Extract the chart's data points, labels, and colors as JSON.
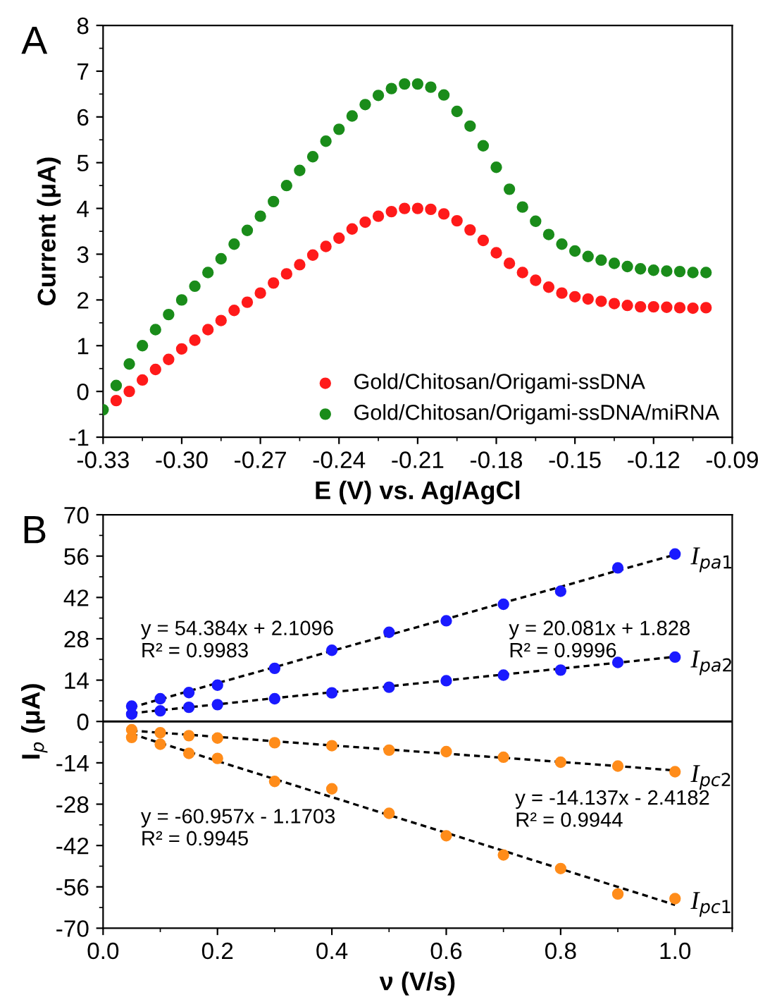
{
  "chart_data": [
    {
      "type": "scatter",
      "xlabel": "E (V) vs. Ag/AgCl",
      "ylabel": "Current (μA)",
      "annotations": [
        "A"
      ],
      "x": [
        -0.33,
        -0.325,
        -0.32,
        -0.315,
        -0.31,
        -0.305,
        -0.3,
        -0.295,
        -0.29,
        -0.285,
        -0.28,
        -0.275,
        -0.27,
        -0.265,
        -0.26,
        -0.255,
        -0.25,
        -0.245,
        -0.24,
        -0.235,
        -0.23,
        -0.225,
        -0.22,
        -0.215,
        -0.21,
        -0.205,
        -0.2,
        -0.195,
        -0.19,
        -0.185,
        -0.18,
        -0.175,
        -0.17,
        -0.165,
        -0.16,
        -0.155,
        -0.15,
        -0.145,
        -0.14,
        -0.135,
        -0.13,
        -0.125,
        -0.12,
        -0.115,
        -0.11,
        -0.105,
        -0.1
      ],
      "series": [
        {
          "name": "Gold/Chitosan/Origami-ssDNA",
          "color": "#ff1a1a",
          "values": [
            null,
            -0.2,
            0.0,
            0.25,
            0.48,
            0.7,
            0.93,
            1.12,
            1.35,
            1.55,
            1.77,
            1.95,
            2.15,
            2.37,
            2.57,
            2.77,
            2.98,
            3.17,
            3.35,
            3.55,
            3.7,
            3.83,
            3.93,
            4.0,
            4.0,
            3.98,
            3.88,
            3.73,
            3.53,
            3.3,
            3.03,
            2.8,
            2.6,
            2.43,
            2.28,
            2.15,
            2.07,
            2.02,
            1.97,
            1.92,
            1.88,
            1.85,
            1.85,
            1.84,
            1.83,
            1.82,
            1.83
          ]
        },
        {
          "name": "Gold/Chitosan/Origami-ssDNA/miRNA",
          "color": "#1a8c1a",
          "values": [
            -0.4,
            0.13,
            0.6,
            1.0,
            1.35,
            1.68,
            2.0,
            2.3,
            2.6,
            2.9,
            3.22,
            3.52,
            3.83,
            4.15,
            4.5,
            4.83,
            5.13,
            5.47,
            5.73,
            6.02,
            6.27,
            6.47,
            6.62,
            6.72,
            6.72,
            6.65,
            6.48,
            6.12,
            5.8,
            5.37,
            4.9,
            4.42,
            4.03,
            3.72,
            3.43,
            3.22,
            3.07,
            2.95,
            2.87,
            2.8,
            2.73,
            2.68,
            2.65,
            2.63,
            2.62,
            2.6,
            2.6
          ]
        }
      ],
      "xlim": [
        -0.33,
        -0.09
      ],
      "xticks": [
        {
          "value": -0.33,
          "label": "-0.33"
        },
        {
          "value": -0.3,
          "label": "-0.30"
        },
        {
          "value": -0.27,
          "label": "-0.27"
        },
        {
          "value": -0.24,
          "label": "-0.24"
        },
        {
          "value": -0.21,
          "label": "-0.21"
        },
        {
          "value": -0.18,
          "label": "-0.18"
        },
        {
          "value": -0.15,
          "label": "-0.15"
        },
        {
          "value": -0.12,
          "label": "-0.12"
        },
        {
          "value": -0.09,
          "label": "-0.09"
        }
      ],
      "ylim": [
        -1,
        8
      ],
      "yticks": [
        -1,
        0,
        1,
        2,
        3,
        4,
        5,
        6,
        7,
        8
      ],
      "marker": "circle",
      "legend": "bottom right"
    },
    {
      "type": "scatter",
      "xlabel": "ν (V/s)",
      "ylabel": "I$_{p}$ (μA)",
      "annotations": [
        "B",
        "y = 54.384x + 2.1096\nR² = 0.9983",
        "y = 20.081x + 1.828\nR² = 0.9996",
        "y = -14.137x - 2.4182\nR² = 0.9944",
        "y = -60.957x - 1.1703\nR² = 0.9945"
      ],
      "x": [
        0.05,
        0.1,
        0.15,
        0.2,
        0.3,
        0.4,
        0.5,
        0.6,
        0.7,
        0.8,
        0.9,
        1.0
      ],
      "series": [
        {
          "name": "I$_{pa1}$",
          "color": "#1a1aff",
          "values": [
            5.2,
            7.7,
            9.8,
            12.3,
            18.0,
            24.1,
            30.2,
            34.1,
            39.7,
            44.1,
            52.0,
            56.7
          ]
        },
        {
          "name": "I$_{pa2}$",
          "color": "#1a1aff",
          "values": [
            2.5,
            3.6,
            4.8,
            5.7,
            7.7,
            9.7,
            11.6,
            13.8,
            15.7,
            17.4,
            20.0,
            21.8
          ]
        },
        {
          "name": "I$_{pc2}$",
          "color": "#ff8c1a",
          "values": [
            -2.8,
            -3.8,
            -4.8,
            -5.6,
            -7.2,
            -8.2,
            -9.7,
            -10.2,
            -12.1,
            -13.8,
            -15.1,
            -17.0
          ]
        },
        {
          "name": "I$_{pc1}$",
          "color": "#ff8c1a",
          "values": [
            -5.4,
            -7.7,
            -10.8,
            -12.5,
            -20.3,
            -22.8,
            -31.1,
            -38.7,
            -45.2,
            -49.8,
            -58.4,
            -60.0
          ]
        },
        {
          "type": "line",
          "color": "#000000",
          "line_style": "dashed",
          "marker": "none",
          "values": [
            4.8,
            7.5,
            10.3,
            13.0,
            18.4,
            23.9,
            29.3,
            34.7,
            40.2,
            45.6,
            51.1,
            56.5
          ]
        },
        {
          "type": "line",
          "color": "#000000",
          "line_style": "dashed",
          "marker": "none",
          "values": [
            2.8,
            3.8,
            4.8,
            5.8,
            7.9,
            9.9,
            11.9,
            13.9,
            15.9,
            17.9,
            19.9,
            21.9
          ]
        },
        {
          "type": "line",
          "color": "#000000",
          "line_style": "dashed",
          "marker": "none",
          "values": [
            -3.1,
            -3.8,
            -4.5,
            -5.2,
            -6.7,
            -8.1,
            -9.5,
            -10.9,
            -12.3,
            -13.7,
            -15.1,
            -16.6
          ]
        },
        {
          "type": "line",
          "color": "#000000",
          "line_style": "dashed",
          "marker": "none",
          "values": [
            -4.2,
            -7.3,
            -10.3,
            -13.4,
            -19.5,
            -25.6,
            -31.7,
            -37.7,
            -43.8,
            -49.9,
            -56.0,
            -62.1
          ]
        }
      ],
      "xlim": [
        0,
        1.1
      ],
      "xticks": [
        {
          "value": 0,
          "label": "0.0"
        },
        {
          "value": 0.2,
          "label": "0.2"
        },
        {
          "value": 0.4,
          "label": "0.4"
        },
        {
          "value": 0.6,
          "label": "0.6"
        },
        {
          "value": 0.8,
          "label": "0.8"
        },
        {
          "value": 1.0,
          "label": "1.0"
        }
      ],
      "ylim": [
        -70,
        70
      ],
      "yticks": [
        -70,
        -56,
        -42,
        -28,
        -14,
        0,
        14,
        28,
        42,
        56,
        70
      ],
      "ref_lines": [
        {
          "axis": "y",
          "value": 0,
          "color": "#000000",
          "line_style": "solid"
        }
      ],
      "marker": "circle"
    }
  ]
}
